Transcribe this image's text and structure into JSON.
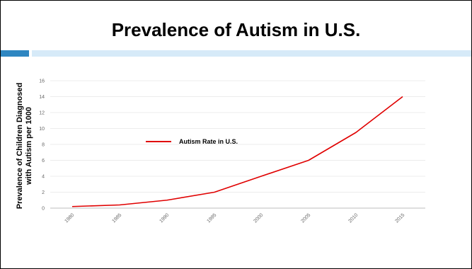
{
  "slide": {
    "title": "Prevalence of Autism in U.S.",
    "accent_dark_color": "#2e86c1",
    "accent_light_color": "#d6eaf8"
  },
  "chart_data": {
    "type": "line",
    "title": "",
    "x": [
      "1980",
      "1985",
      "1990",
      "1995",
      "2000",
      "2005",
      "2010",
      "2015"
    ],
    "series": [
      {
        "name": "Autism Rate in U.S.",
        "color": "#e00000",
        "values": [
          0.2,
          0.4,
          1.0,
          2.0,
          4.0,
          6.0,
          9.5,
          14.0
        ]
      }
    ],
    "xlabel": "",
    "ylabel_lines": [
      "Prevalence of Children Diagnosed",
      "with Autism per 1000"
    ],
    "ylim": [
      0,
      16
    ],
    "yticks": [
      "0",
      "2",
      "4",
      "6",
      "8",
      "10",
      "12",
      "14",
      "16"
    ],
    "grid": true,
    "legend_position": "center-left"
  }
}
